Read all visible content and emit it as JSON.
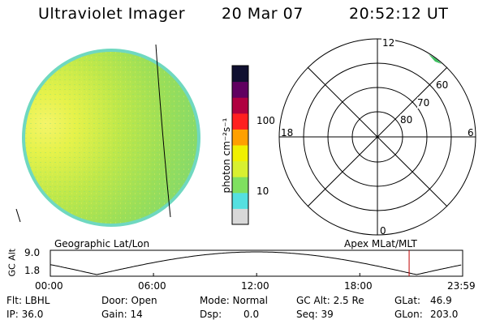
{
  "header": {
    "title": "Ultraviolet Imager",
    "date": "20 Mar 07",
    "time": "20:52:12 UT"
  },
  "colorbar": {
    "label": "photon cm⁻²s⁻¹",
    "ticks": [
      "100",
      "10"
    ],
    "colors": [
      "#d8d8d8",
      "#55e0e0",
      "#7fe060",
      "#d8f030",
      "#f0f000",
      "#ffa000",
      "#ff2020",
      "#b00040",
      "#600060",
      "#101030"
    ]
  },
  "polar_plot": {
    "mlt_labels": {
      "top": "12",
      "bottom": "0",
      "left": "18",
      "right": "6"
    },
    "lat_labels": [
      "60",
      "70",
      "80"
    ]
  },
  "altitude_strip": {
    "ylabel": "GC Alt",
    "yticks": [
      "9.0",
      "1.8"
    ],
    "left_label": "Geographic Lat/Lon",
    "right_label": "Apex MLat/MLT",
    "xticks": [
      "00:00",
      "06:00",
      "12:00",
      "18:00",
      "23:59"
    ],
    "marker_time_hours": 20.87
  },
  "info": {
    "flt": "Flt: LBHL",
    "door": "Door: Open",
    "mode": "Mode: Normal",
    "gcalt": "GC Alt: 2.5 Re",
    "glat_label": "GLat:",
    "glat_value": "46.9",
    "ip": "IP: 36.0",
    "gain": "Gain: 14",
    "dsp_label": "Dsp:",
    "dsp_value": "0.0",
    "seq": "Seq: 39",
    "glon_label": "GLon:",
    "glon_value": "203.0"
  }
}
